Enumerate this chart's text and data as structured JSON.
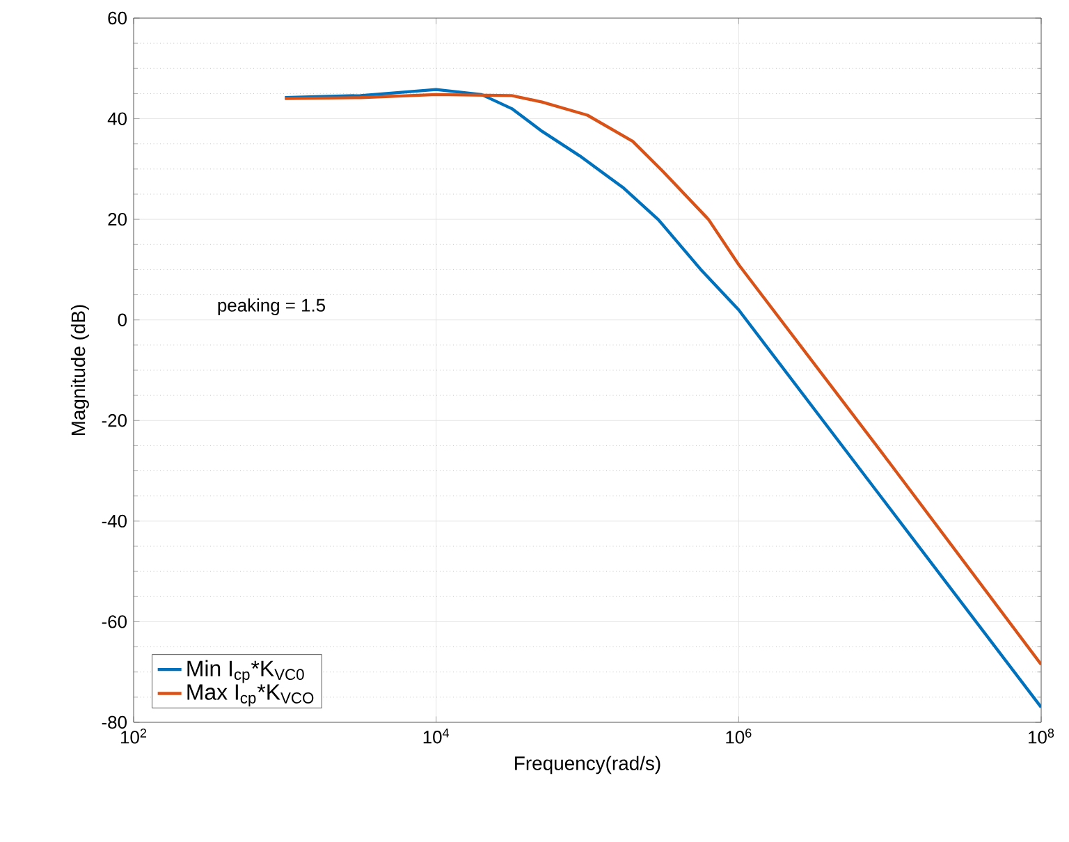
{
  "chart_data": {
    "type": "line",
    "xlabel": "Frequency(rad/s)",
    "ylabel": "Magnitude (dB)",
    "log": "x",
    "grid": true,
    "legend": "bottom left",
    "line_style": "solid",
    "marker": "none",
    "xlim": [
      100,
      100000000
    ],
    "ylim": [
      -80,
      60
    ],
    "xticks": [
      {
        "value": 100,
        "label": "10$^{2}$"
      },
      {
        "value": 10000,
        "label": "10$^{4}$"
      },
      {
        "value": 1000000,
        "label": "10$^{6}$"
      },
      {
        "value": 100000000,
        "label": "10$^{8}$"
      }
    ],
    "yticks": [
      -80,
      -60,
      -40,
      -20,
      0,
      20,
      40,
      60
    ],
    "annotations": [
      "peaking = 1.5"
    ],
    "series": [
      {
        "name": "Min I$_{cp}$*K$_{VC0}$",
        "color": "#0072bd",
        "x": [
          1000,
          3162,
          10000,
          19953,
          31623,
          50119,
          89125,
          173780,
          295120,
          562340,
          1000000,
          10000000,
          100000000
        ],
        "values": [
          44.2,
          44.6,
          45.8,
          44.8,
          42,
          37.5,
          32.6,
          26.2,
          19.9,
          10,
          2,
          -37.5,
          -77
        ]
      },
      {
        "name": "Max I$_{cp}$*K$_{VCO}$",
        "color": "#d95319",
        "x": [
          1000,
          3162,
          10000,
          31623,
          50119,
          100000,
          199530,
          316230,
          630960,
          1000000,
          10000000,
          100000000
        ],
        "values": [
          44,
          44.2,
          44.8,
          44.6,
          43.3,
          40.7,
          35.5,
          29.5,
          20,
          11,
          -28.5,
          -68.5
        ]
      }
    ]
  }
}
